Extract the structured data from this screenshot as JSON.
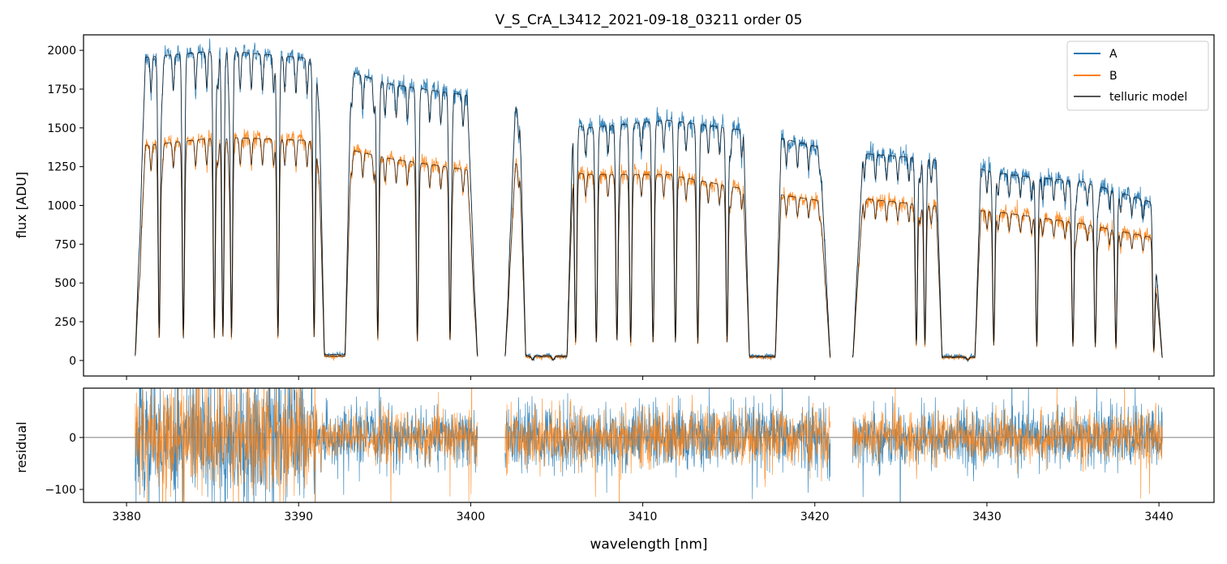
{
  "chart_data": [
    {
      "type": "line",
      "panel": "top",
      "title": "V_S_CrA_L3412_2021-09-18_03211  order 05",
      "xlabel": "",
      "ylabel": "flux [ADU]",
      "xlim": [
        3377.5,
        3443.2
      ],
      "ylim": [
        -100,
        2100
      ],
      "yticks": [
        0,
        250,
        500,
        750,
        1000,
        1250,
        1500,
        1750,
        2000
      ],
      "ytick_labels": [
        "0",
        "250",
        "500",
        "750",
        "1000",
        "1250",
        "1500",
        "1750",
        "2000"
      ],
      "xticks": [
        3380,
        3390,
        3400,
        3410,
        3420,
        3430,
        3440
      ],
      "legend": {
        "location": "upper right",
        "entries": [
          {
            "label": "A",
            "color": "#1f77b4"
          },
          {
            "label": "B",
            "color": "#ff7f0e"
          },
          {
            "label": "telluric model",
            "color": "#555555"
          }
        ]
      },
      "segments": [
        {
          "x_range": [
            3380.5,
            3400.4
          ],
          "continuum_A": [
            1950,
            2000,
            1950,
            1780,
            1700
          ],
          "continuum_B": [
            1380,
            1440,
            1420,
            1300,
            1220
          ]
        },
        {
          "x_range": [
            3402.0,
            3420.9
          ],
          "continuum_A": [
            1650,
            1500,
            1550,
            1480,
            1360
          ],
          "continuum_B": [
            1280,
            1200,
            1200,
            1100,
            1020
          ]
        },
        {
          "x_range": [
            3422.2,
            3440.2
          ],
          "continuum_A": [
            1340,
            1300,
            1200,
            1150,
            1000
          ],
          "continuum_B": [
            1050,
            1000,
            950,
            880,
            780
          ]
        }
      ],
      "absorption_lines_nm": [
        3381.9,
        3383.3,
        3385.1,
        3385.6,
        3386.1,
        3388.8,
        3390.9,
        3394.6,
        3396.9,
        3398.8,
        3403.6,
        3404.8,
        3406.1,
        3407.3,
        3408.5,
        3409.3,
        3410.6,
        3411.9,
        3413.2,
        3414.9,
        3425.9,
        3426.4,
        3428.9,
        3430.4,
        3432.9,
        3435.0,
        3436.3,
        3437.5,
        3439.7
      ],
      "saturated_bands_nm": [
        [
          3391.5,
          3392.7
        ],
        [
          3403.2,
          3405.6
        ],
        [
          3416.2,
          3417.7
        ],
        [
          3427.4,
          3429.3
        ]
      ],
      "series": [
        {
          "name": "A",
          "color": "#1f77b4"
        },
        {
          "name": "B",
          "color": "#ff7f0e"
        },
        {
          "name": "telluric model",
          "color": "#000000"
        }
      ]
    },
    {
      "type": "line",
      "panel": "bottom",
      "xlabel": "wavelength [nm]",
      "ylabel": "residual",
      "xlim": [
        3377.5,
        3443.2
      ],
      "ylim": [
        -125,
        95
      ],
      "yticks": [
        -100,
        0
      ],
      "ytick_labels": [
        "−100",
        "0"
      ],
      "xticks": [
        3380,
        3390,
        3400,
        3410,
        3420,
        3430,
        3440
      ],
      "xtick_labels": [
        "3380",
        "3390",
        "3400",
        "3410",
        "3420",
        "3430",
        "3440"
      ],
      "noise_amplitude": [
        {
          "x_range": [
            3380.5,
            3391.0
          ],
          "sigma": 65
        },
        {
          "x_range": [
            3391.0,
            3400.4
          ],
          "sigma": 28
        },
        {
          "x_range": [
            3402.0,
            3420.9
          ],
          "sigma": 32
        },
        {
          "x_range": [
            3422.2,
            3440.2
          ],
          "sigma": 28
        }
      ],
      "reference_line_y": 0,
      "series": [
        {
          "name": "A",
          "color": "#1f77b4"
        },
        {
          "name": "B",
          "color": "#ff7f0e"
        }
      ]
    }
  ]
}
